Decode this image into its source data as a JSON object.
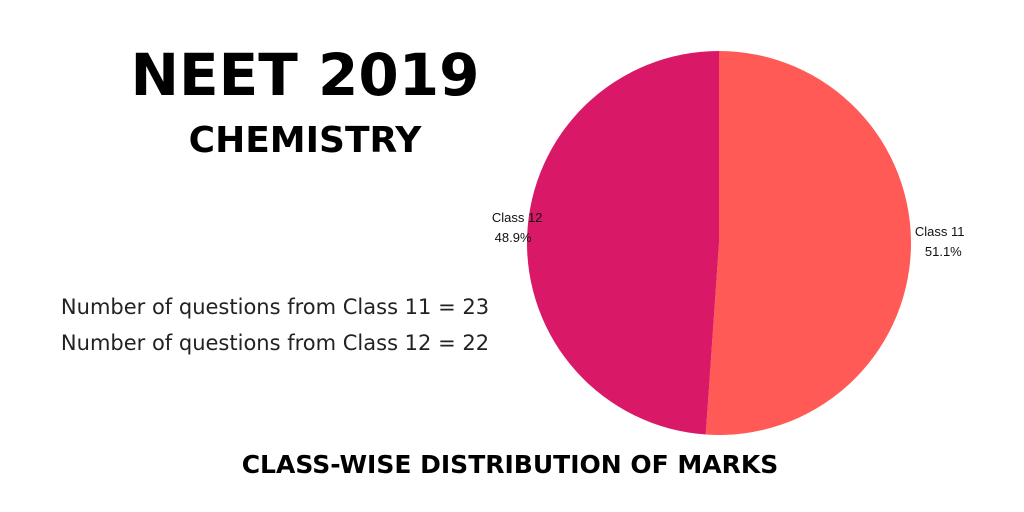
{
  "header": {
    "title": "NEET 2019",
    "subtitle": "CHEMISTRY"
  },
  "info": {
    "line1": "Number of questions from Class 11 = 23",
    "line2": "Number of questions from Class 12 = 22"
  },
  "caption": "CLASS-WISE DISTRIBUTION OF MARKS",
  "chart_data": {
    "type": "pie",
    "title": "CLASS-WISE DISTRIBUTION OF MARKS",
    "slices": [
      {
        "label": "Class 11",
        "value": 51.1,
        "display": "51.1%",
        "color": "#ff5a55"
      },
      {
        "label": "Class 12",
        "value": 48.9,
        "display": "48.9%",
        "color": "#d91868"
      }
    ],
    "legend": "none",
    "start_angle": "12 o'clock",
    "direction": "clockwise"
  }
}
